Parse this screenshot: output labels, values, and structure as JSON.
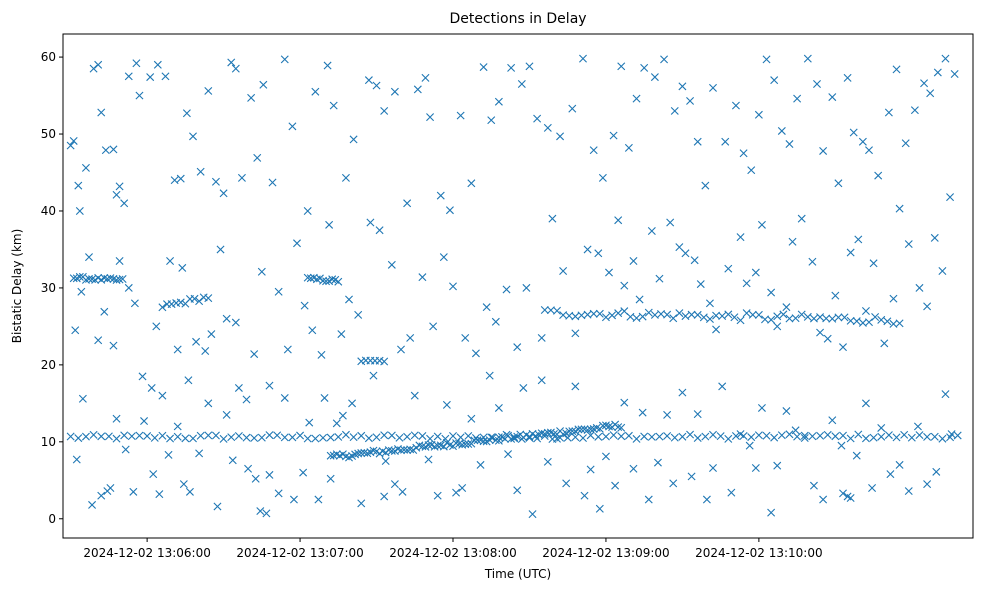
{
  "chart_data": {
    "type": "scatter",
    "title": "Detections in Delay",
    "xlabel": "Time (UTC)",
    "ylabel": "Bistatic Delay (km)",
    "marker": "x",
    "color": "#1f77b4",
    "grid": false,
    "xlim_minutes": [
      -0.55,
      5.4
    ],
    "ylim": [
      -2.5,
      63
    ],
    "xticks": [
      {
        "t": 0,
        "label": "2024-12-02 13:06:00"
      },
      {
        "t": 1,
        "label": "2024-12-02 13:07:00"
      },
      {
        "t": 2,
        "label": "2024-12-02 13:08:00"
      },
      {
        "t": 3,
        "label": "2024-12-02 13:09:00"
      },
      {
        "t": 4,
        "label": "2024-12-02 13:10:00"
      }
    ],
    "yticks": [
      0,
      10,
      20,
      30,
      40,
      50,
      60
    ],
    "tracks": [
      {
        "name": "band-10km",
        "t_start": -0.5,
        "t_end": 5.3,
        "step": 0.05,
        "y_start": 10.6,
        "y_end": 10.7,
        "jitter": 0.3
      },
      {
        "name": "rising-track",
        "t_start": 1.2,
        "t_end": 3.1,
        "step": 0.02,
        "y_start": 8.0,
        "y_end": 12.1,
        "jitter": 0.3
      },
      {
        "name": "track-31km",
        "t_start": -0.48,
        "t_end": -0.15,
        "step": 0.02,
        "y_start": 31.3,
        "y_end": 31.0,
        "jitter": 0.2
      },
      {
        "name": "track-28km",
        "t_start": 0.1,
        "t_end": 0.4,
        "step": 0.03,
        "y_start": 27.6,
        "y_end": 28.8,
        "jitter": 0.3
      },
      {
        "name": "track-31km-b",
        "t_start": 1.05,
        "t_end": 1.25,
        "step": 0.02,
        "y_start": 31.2,
        "y_end": 30.9,
        "jitter": 0.2
      },
      {
        "name": "track-20km",
        "t_start": 1.4,
        "t_end": 1.55,
        "step": 0.03,
        "y_start": 20.5,
        "y_end": 20.5,
        "jitter": 0.1
      },
      {
        "name": "track-26km",
        "t_start": 2.6,
        "t_end": 4.9,
        "step": 0.04,
        "y_start": 26.8,
        "y_end": 25.8,
        "jitter": 0.5
      }
    ],
    "scatter_points": [
      [
        -0.5,
        48.5
      ],
      [
        -0.48,
        49.1
      ],
      [
        -0.45,
        43.3
      ],
      [
        -0.44,
        40.0
      ],
      [
        -0.4,
        45.6
      ],
      [
        -0.35,
        58.5
      ],
      [
        -0.32,
        59.0
      ],
      [
        -0.3,
        52.8
      ],
      [
        -0.27,
        47.9
      ],
      [
        -0.22,
        48.0
      ],
      [
        -0.2,
        42.1
      ],
      [
        -0.18,
        43.2
      ],
      [
        -0.15,
        41.0
      ],
      [
        -0.12,
        57.5
      ],
      [
        -0.07,
        59.2
      ],
      [
        -0.05,
        55.0
      ],
      [
        0.02,
        57.4
      ],
      [
        0.07,
        59.0
      ],
      [
        0.12,
        57.5
      ],
      [
        0.18,
        44.0
      ],
      [
        0.22,
        44.2
      ],
      [
        0.26,
        52.7
      ],
      [
        0.3,
        49.7
      ],
      [
        0.35,
        45.1
      ],
      [
        0.4,
        55.6
      ],
      [
        0.45,
        43.8
      ],
      [
        0.5,
        42.3
      ],
      [
        0.55,
        59.3
      ],
      [
        0.58,
        58.5
      ],
      [
        0.62,
        44.3
      ],
      [
        0.68,
        54.7
      ],
      [
        0.72,
        46.9
      ],
      [
        0.76,
        56.4
      ],
      [
        0.82,
        43.7
      ],
      [
        0.9,
        59.7
      ],
      [
        0.95,
        51.0
      ],
      [
        1.05,
        40.0
      ],
      [
        1.1,
        55.5
      ],
      [
        1.18,
        58.9
      ],
      [
        1.22,
        53.7
      ],
      [
        1.3,
        44.3
      ],
      [
        1.35,
        49.3
      ],
      [
        1.45,
        57.0
      ],
      [
        1.5,
        56.3
      ],
      [
        1.55,
        53.0
      ],
      [
        1.62,
        55.5
      ],
      [
        1.7,
        41.0
      ],
      [
        1.77,
        55.8
      ],
      [
        1.82,
        57.3
      ],
      [
        1.85,
        52.2
      ],
      [
        1.92,
        42.0
      ],
      [
        1.98,
        40.1
      ],
      [
        2.05,
        52.4
      ],
      [
        2.12,
        43.6
      ],
      [
        2.2,
        58.7
      ],
      [
        2.25,
        51.8
      ],
      [
        2.3,
        54.2
      ],
      [
        2.38,
        58.6
      ],
      [
        2.45,
        56.5
      ],
      [
        2.5,
        58.8
      ],
      [
        2.55,
        52.0
      ],
      [
        2.62,
        50.8
      ],
      [
        2.7,
        49.7
      ],
      [
        2.78,
        53.3
      ],
      [
        2.85,
        59.8
      ],
      [
        2.92,
        47.9
      ],
      [
        2.98,
        44.3
      ],
      [
        3.05,
        49.8
      ],
      [
        3.1,
        58.8
      ],
      [
        3.15,
        48.2
      ],
      [
        3.2,
        54.6
      ],
      [
        3.25,
        58.6
      ],
      [
        3.32,
        57.4
      ],
      [
        3.38,
        59.7
      ],
      [
        3.45,
        53.0
      ],
      [
        3.5,
        56.2
      ],
      [
        3.55,
        54.3
      ],
      [
        3.6,
        49.0
      ],
      [
        3.65,
        43.3
      ],
      [
        3.7,
        56.0
      ],
      [
        3.78,
        49.0
      ],
      [
        3.85,
        53.7
      ],
      [
        3.9,
        47.5
      ],
      [
        3.95,
        45.3
      ],
      [
        4.0,
        52.5
      ],
      [
        4.05,
        59.7
      ],
      [
        4.1,
        57.0
      ],
      [
        4.15,
        50.4
      ],
      [
        4.2,
        48.7
      ],
      [
        4.25,
        54.6
      ],
      [
        4.32,
        59.8
      ],
      [
        4.38,
        56.5
      ],
      [
        4.42,
        47.8
      ],
      [
        4.48,
        54.8
      ],
      [
        4.52,
        43.6
      ],
      [
        4.58,
        57.3
      ],
      [
        4.62,
        50.2
      ],
      [
        4.68,
        49.0
      ],
      [
        4.72,
        47.9
      ],
      [
        4.78,
        44.6
      ],
      [
        4.85,
        52.8
      ],
      [
        4.9,
        58.4
      ],
      [
        4.96,
        48.8
      ],
      [
        5.02,
        53.1
      ],
      [
        5.08,
        56.6
      ],
      [
        5.12,
        55.3
      ],
      [
        5.17,
        58.0
      ],
      [
        5.22,
        59.8
      ],
      [
        5.28,
        57.8
      ],
      [
        5.25,
        41.8
      ],
      [
        -0.47,
        24.5
      ],
      [
        -0.43,
        29.5
      ],
      [
        -0.38,
        34.0
      ],
      [
        -0.32,
        23.2
      ],
      [
        -0.28,
        26.9
      ],
      [
        -0.22,
        22.5
      ],
      [
        -0.18,
        33.5
      ],
      [
        -0.12,
        30.0
      ],
      [
        -0.08,
        28.0
      ],
      [
        -0.03,
        18.5
      ],
      [
        0.03,
        17.0
      ],
      [
        0.06,
        25.0
      ],
      [
        0.1,
        16.0
      ],
      [
        0.15,
        33.5
      ],
      [
        0.2,
        22.0
      ],
      [
        0.23,
        32.6
      ],
      [
        0.27,
        18.0
      ],
      [
        0.32,
        23.0
      ],
      [
        0.38,
        21.8
      ],
      [
        0.42,
        24.0
      ],
      [
        0.48,
        35.0
      ],
      [
        0.52,
        26.0
      ],
      [
        0.58,
        25.5
      ],
      [
        0.65,
        15.5
      ],
      [
        0.7,
        21.4
      ],
      [
        0.75,
        32.1
      ],
      [
        0.8,
        17.3
      ],
      [
        0.86,
        29.5
      ],
      [
        0.92,
        22.0
      ],
      [
        0.98,
        35.8
      ],
      [
        1.03,
        27.7
      ],
      [
        1.08,
        24.5
      ],
      [
        1.14,
        21.3
      ],
      [
        1.19,
        38.2
      ],
      [
        1.27,
        24.0
      ],
      [
        1.32,
        28.5
      ],
      [
        1.38,
        26.5
      ],
      [
        1.46,
        38.5
      ],
      [
        1.52,
        37.5
      ],
      [
        1.6,
        33.0
      ],
      [
        1.66,
        22.0
      ],
      [
        1.72,
        23.5
      ],
      [
        1.8,
        31.4
      ],
      [
        1.87,
        25.0
      ],
      [
        1.94,
        34.0
      ],
      [
        2.0,
        30.2
      ],
      [
        2.08,
        23.5
      ],
      [
        2.15,
        21.5
      ],
      [
        2.22,
        27.5
      ],
      [
        2.28,
        25.6
      ],
      [
        2.35,
        29.8
      ],
      [
        2.42,
        22.3
      ],
      [
        2.48,
        30.0
      ],
      [
        2.58,
        23.5
      ],
      [
        2.65,
        39.0
      ],
      [
        2.72,
        32.2
      ],
      [
        2.8,
        24.1
      ],
      [
        2.88,
        35.0
      ],
      [
        2.95,
        34.5
      ],
      [
        3.02,
        32.0
      ],
      [
        3.08,
        38.8
      ],
      [
        3.12,
        30.3
      ],
      [
        3.18,
        33.5
      ],
      [
        3.22,
        28.5
      ],
      [
        3.3,
        37.4
      ],
      [
        3.35,
        31.2
      ],
      [
        3.42,
        38.5
      ],
      [
        3.48,
        35.3
      ],
      [
        3.52,
        34.5
      ],
      [
        3.58,
        33.6
      ],
      [
        3.62,
        30.5
      ],
      [
        3.68,
        28.0
      ],
      [
        3.72,
        24.6
      ],
      [
        3.8,
        32.5
      ],
      [
        3.88,
        36.6
      ],
      [
        3.92,
        30.6
      ],
      [
        3.98,
        32.0
      ],
      [
        4.02,
        38.2
      ],
      [
        4.08,
        29.4
      ],
      [
        4.12,
        25.0
      ],
      [
        4.18,
        27.5
      ],
      [
        4.22,
        36.0
      ],
      [
        4.28,
        39.0
      ],
      [
        4.35,
        33.4
      ],
      [
        4.4,
        24.2
      ],
      [
        4.45,
        23.4
      ],
      [
        4.5,
        29.0
      ],
      [
        4.55,
        22.3
      ],
      [
        4.6,
        34.6
      ],
      [
        4.65,
        36.3
      ],
      [
        4.7,
        27.0
      ],
      [
        4.75,
        33.2
      ],
      [
        4.82,
        22.8
      ],
      [
        4.88,
        28.6
      ],
      [
        4.92,
        40.3
      ],
      [
        4.98,
        35.7
      ],
      [
        5.05,
        30.0
      ],
      [
        5.1,
        27.6
      ],
      [
        5.15,
        36.5
      ],
      [
        5.2,
        32.2
      ],
      [
        -0.46,
        7.7
      ],
      [
        -0.42,
        15.6
      ],
      [
        -0.36,
        1.8
      ],
      [
        -0.3,
        3.0
      ],
      [
        -0.26,
        3.6
      ],
      [
        -0.24,
        4.0
      ],
      [
        -0.2,
        13.0
      ],
      [
        -0.14,
        9.0
      ],
      [
        -0.09,
        3.5
      ],
      [
        -0.02,
        12.7
      ],
      [
        0.04,
        5.8
      ],
      [
        0.08,
        3.2
      ],
      [
        0.14,
        8.3
      ],
      [
        0.2,
        12.0
      ],
      [
        0.24,
        4.5
      ],
      [
        0.28,
        3.5
      ],
      [
        0.34,
        8.5
      ],
      [
        0.4,
        15.0
      ],
      [
        0.46,
        1.6
      ],
      [
        0.52,
        13.5
      ],
      [
        0.56,
        7.6
      ],
      [
        0.6,
        17.0
      ],
      [
        0.66,
        6.5
      ],
      [
        0.71,
        5.2
      ],
      [
        0.74,
        1.0
      ],
      [
        0.8,
        5.7
      ],
      [
        0.86,
        3.3
      ],
      [
        0.9,
        15.7
      ],
      [
        0.96,
        2.5
      ],
      [
        1.02,
        6.0
      ],
      [
        1.06,
        12.5
      ],
      [
        1.12,
        2.5
      ],
      [
        1.16,
        15.7
      ],
      [
        1.2,
        5.2
      ],
      [
        1.24,
        12.4
      ],
      [
        1.28,
        13.4
      ],
      [
        1.34,
        15.0
      ],
      [
        1.4,
        2.0
      ],
      [
        1.48,
        18.6
      ],
      [
        1.56,
        7.5
      ],
      [
        1.62,
        4.5
      ],
      [
        1.67,
        3.5
      ],
      [
        1.75,
        16.0
      ],
      [
        1.84,
        7.7
      ],
      [
        1.9,
        3.0
      ],
      [
        1.96,
        14.8
      ],
      [
        2.02,
        3.4
      ],
      [
        2.06,
        4.0
      ],
      [
        2.12,
        13.0
      ],
      [
        2.18,
        7.0
      ],
      [
        2.24,
        18.6
      ],
      [
        2.3,
        14.4
      ],
      [
        2.36,
        8.4
      ],
      [
        2.42,
        3.7
      ],
      [
        2.46,
        17.0
      ],
      [
        2.52,
        0.6
      ],
      [
        2.58,
        18.0
      ],
      [
        2.62,
        7.4
      ],
      [
        2.68,
        10.4
      ],
      [
        2.74,
        4.6
      ],
      [
        2.8,
        17.2
      ],
      [
        2.86,
        3.0
      ],
      [
        2.9,
        6.4
      ],
      [
        2.96,
        1.3
      ],
      [
        3.0,
        8.1
      ],
      [
        3.06,
        4.3
      ],
      [
        3.12,
        15.1
      ],
      [
        3.18,
        6.5
      ],
      [
        3.24,
        13.8
      ],
      [
        3.28,
        2.5
      ],
      [
        3.34,
        7.3
      ],
      [
        3.4,
        13.5
      ],
      [
        3.44,
        4.6
      ],
      [
        3.5,
        16.4
      ],
      [
        3.56,
        5.5
      ],
      [
        3.6,
        13.6
      ],
      [
        3.66,
        2.5
      ],
      [
        3.7,
        6.6
      ],
      [
        3.76,
        17.2
      ],
      [
        3.82,
        3.4
      ],
      [
        3.88,
        11.0
      ],
      [
        3.94,
        9.5
      ],
      [
        3.98,
        6.6
      ],
      [
        4.02,
        14.4
      ],
      [
        4.08,
        0.8
      ],
      [
        4.12,
        6.9
      ],
      [
        4.18,
        14.0
      ],
      [
        4.24,
        11.5
      ],
      [
        4.3,
        10.8
      ],
      [
        4.36,
        4.3
      ],
      [
        4.42,
        2.5
      ],
      [
        4.48,
        12.8
      ],
      [
        4.54,
        9.5
      ],
      [
        4.58,
        2.9
      ],
      [
        4.64,
        8.2
      ],
      [
        4.7,
        15.0
      ],
      [
        4.74,
        4.0
      ],
      [
        4.8,
        11.8
      ],
      [
        4.86,
        5.8
      ],
      [
        4.92,
        7.0
      ],
      [
        4.98,
        3.6
      ],
      [
        5.04,
        12.0
      ],
      [
        5.1,
        4.5
      ],
      [
        5.16,
        6.1
      ],
      [
        5.22,
        16.2
      ],
      [
        5.26,
        11.0
      ],
      [
        4.6,
        2.7
      ],
      [
        4.55,
        3.3
      ],
      [
        1.55,
        2.9
      ],
      [
        0.78,
        0.7
      ]
    ]
  }
}
